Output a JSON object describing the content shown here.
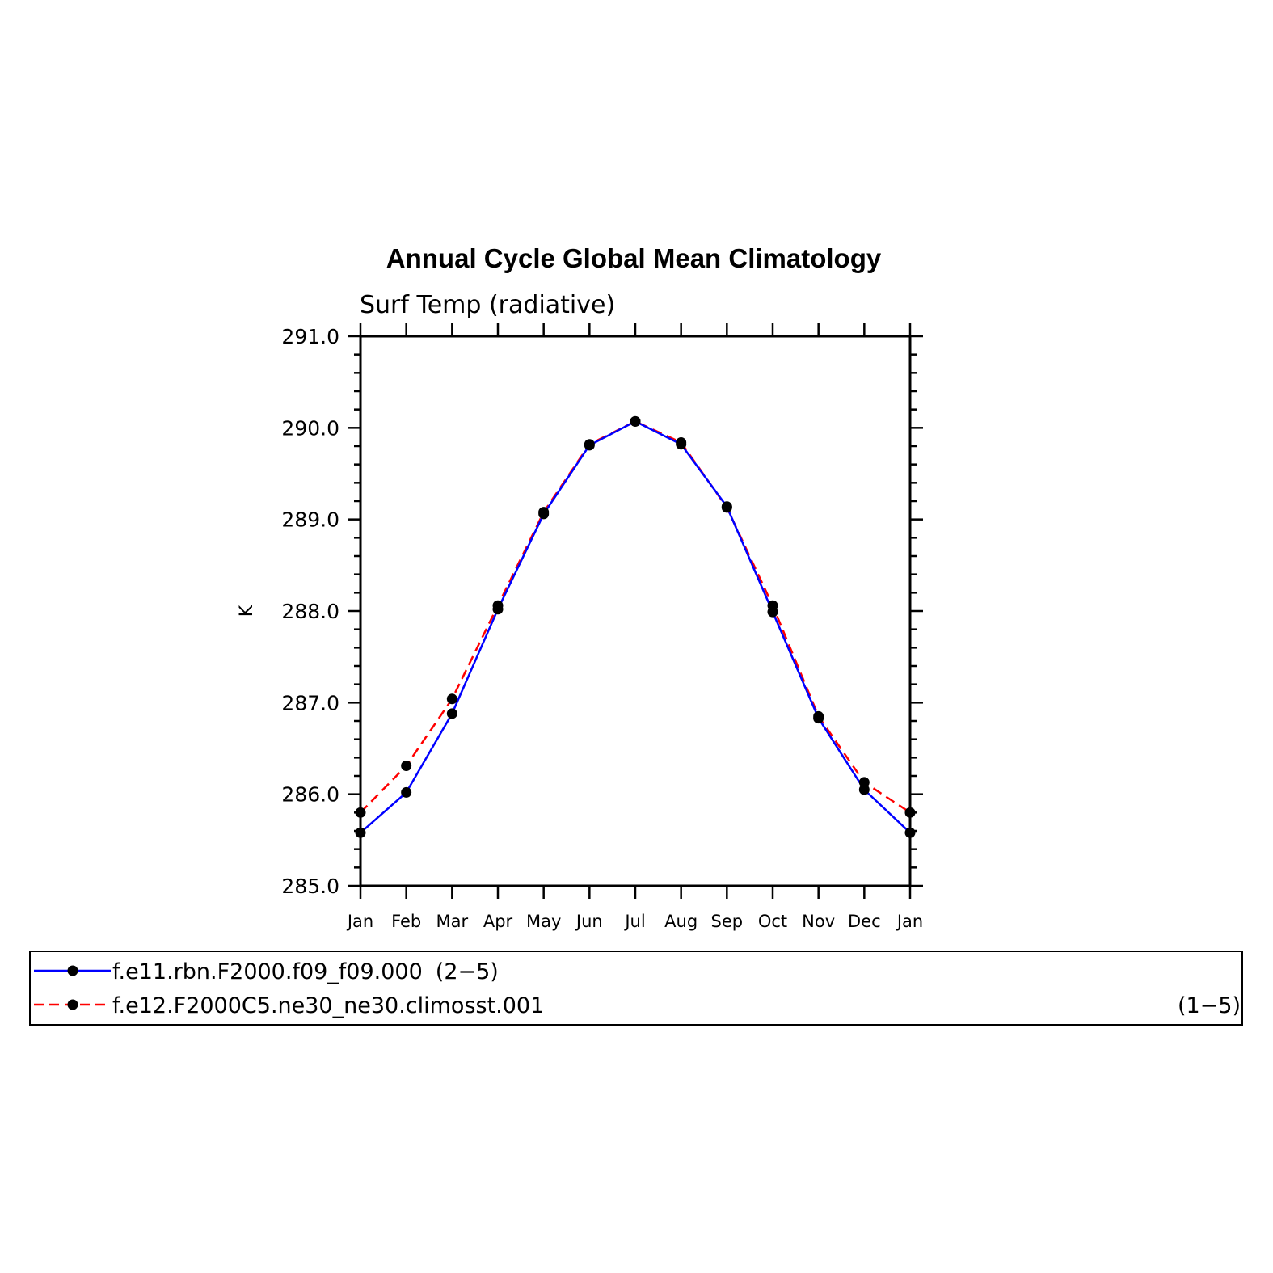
{
  "chart_data": {
    "type": "line",
    "title": "Annual Cycle Global Mean Climatology",
    "subtitle": "Surf Temp (radiative)",
    "xlabel": "",
    "ylabel": "K",
    "ylim": [
      285.0,
      291.0
    ],
    "yticks": [
      "285.0",
      "286.0",
      "287.0",
      "288.0",
      "289.0",
      "290.0",
      "291.0"
    ],
    "categories": [
      "Jan",
      "Feb",
      "Mar",
      "Apr",
      "May",
      "Jun",
      "Jul",
      "Aug",
      "Sep",
      "Oct",
      "Nov",
      "Dec",
      "Jan"
    ],
    "series": [
      {
        "name": "f.e11.rbn.F2000.f09_f09.000",
        "range": "(2−5)",
        "color": "#0000ff",
        "style": "solid",
        "marker": "filled-circle",
        "values": [
          285.58,
          286.02,
          286.88,
          288.02,
          289.06,
          289.81,
          290.07,
          289.82,
          289.14,
          287.99,
          286.83,
          286.05,
          285.58
        ]
      },
      {
        "name": "f.e12.F2000C5.ne30_ne30.climosst.001",
        "range": "(1−5)",
        "color": "#ff0000",
        "style": "dashed",
        "marker": "filled-circle",
        "values": [
          285.8,
          286.31,
          287.04,
          288.06,
          289.08,
          289.82,
          290.07,
          289.84,
          289.13,
          288.06,
          286.85,
          286.13,
          285.8
        ]
      }
    ],
    "grid": false,
    "legend_position": "bottom"
  }
}
